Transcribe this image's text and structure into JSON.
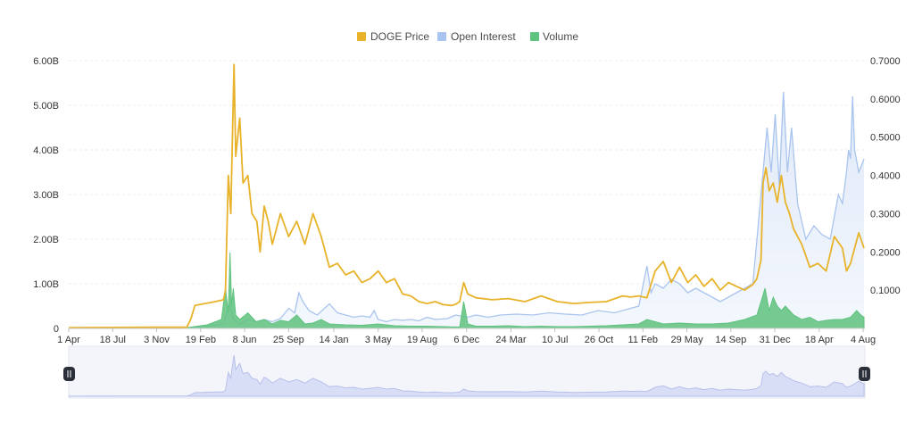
{
  "chart_data": {
    "type": "line",
    "legend": {
      "placement": "top-center",
      "items": [
        {
          "key": "price",
          "label": "DOGE Price",
          "color": "#E8B32A"
        },
        {
          "key": "oi",
          "label": "Open Interest",
          "color": "#A9C4EE"
        },
        {
          "key": "volume",
          "label": "Volume",
          "color": "#5FC27E"
        }
      ]
    },
    "left_axis": {
      "ylim": [
        0,
        6.0
      ],
      "ticks": [
        0,
        1,
        2,
        3,
        4,
        5,
        6
      ],
      "tick_labels": [
        "0",
        "1.00B",
        "2.00B",
        "3.00B",
        "4.00B",
        "5.00B",
        "6.00B"
      ]
    },
    "right_axis": {
      "ylim": [
        0,
        0.7
      ],
      "ticks": [
        0.1,
        0.2,
        0.3,
        0.4,
        0.5,
        0.6,
        0.7
      ],
      "tick_labels": [
        "0.1000",
        "0.2000",
        "0.3000",
        "0.4000",
        "0.5000",
        "0.6000",
        "0.7000"
      ]
    },
    "x_axis": {
      "range": [
        0,
        1953
      ],
      "tick_labels": [
        "1 Apr",
        "18 Jul",
        "3 Nov",
        "19 Feb",
        "8 Jun",
        "25 Sep",
        "14 Jan",
        "3 May",
        "19 Aug",
        "6 Dec",
        "24 Mar",
        "10 Jul",
        "26 Oct",
        "11 Feb",
        "29 May",
        "14 Sep",
        "31 Dec",
        "18 Apr",
        "4 Aug"
      ],
      "tick_positions": [
        0,
        108,
        216,
        324,
        432,
        540,
        651,
        760,
        868,
        977,
        1086,
        1194,
        1302,
        1410,
        1518,
        1626,
        1734,
        1843,
        1951
      ]
    },
    "grid": true,
    "series": [
      {
        "name": "DOGE Price",
        "key": "price",
        "axis": "right",
        "x": [
          0,
          100,
          200,
          290,
          300,
          310,
          360,
          380,
          385,
          392,
          398,
          402,
          406,
          410,
          420,
          428,
          440,
          450,
          462,
          470,
          480,
          490,
          500,
          520,
          540,
          560,
          580,
          600,
          620,
          640,
          660,
          680,
          700,
          720,
          740,
          760,
          780,
          800,
          820,
          840,
          860,
          880,
          900,
          920,
          940,
          950,
          960,
          970,
          980,
          1000,
          1040,
          1080,
          1120,
          1160,
          1200,
          1240,
          1280,
          1320,
          1360,
          1380,
          1400,
          1420,
          1440,
          1460,
          1480,
          1500,
          1520,
          1540,
          1560,
          1580,
          1600,
          1620,
          1640,
          1660,
          1680,
          1690,
          1700,
          1705,
          1712,
          1720,
          1730,
          1740,
          1750,
          1760,
          1770,
          1780,
          1790,
          1800,
          1810,
          1820,
          1840,
          1860,
          1880,
          1900,
          1910,
          1920,
          1930,
          1940,
          1953
        ],
        "values": [
          0.002,
          0.0025,
          0.003,
          0.003,
          0.025,
          0.06,
          0.07,
          0.075,
          0.1,
          0.4,
          0.3,
          0.5,
          0.69,
          0.45,
          0.55,
          0.38,
          0.4,
          0.3,
          0.28,
          0.2,
          0.32,
          0.28,
          0.22,
          0.3,
          0.24,
          0.28,
          0.22,
          0.3,
          0.24,
          0.16,
          0.17,
          0.14,
          0.15,
          0.12,
          0.13,
          0.15,
          0.12,
          0.13,
          0.09,
          0.085,
          0.07,
          0.065,
          0.07,
          0.062,
          0.06,
          0.063,
          0.07,
          0.12,
          0.09,
          0.08,
          0.075,
          0.078,
          0.07,
          0.085,
          0.07,
          0.065,
          0.068,
          0.07,
          0.085,
          0.082,
          0.085,
          0.08,
          0.15,
          0.175,
          0.12,
          0.16,
          0.12,
          0.14,
          0.11,
          0.13,
          0.1,
          0.12,
          0.11,
          0.1,
          0.115,
          0.13,
          0.18,
          0.38,
          0.42,
          0.36,
          0.38,
          0.33,
          0.4,
          0.33,
          0.3,
          0.26,
          0.24,
          0.22,
          0.19,
          0.16,
          0.17,
          0.15,
          0.24,
          0.21,
          0.15,
          0.17,
          0.21,
          0.25,
          0.21
        ]
      },
      {
        "name": "Open Interest",
        "key": "oi",
        "axis": "left",
        "x": [
          0,
          280,
          300,
          340,
          380,
          395,
          405,
          420,
          440,
          460,
          480,
          500,
          520,
          540,
          555,
          565,
          575,
          590,
          610,
          640,
          660,
          680,
          700,
          720,
          740,
          750,
          760,
          780,
          800,
          820,
          840,
          860,
          880,
          900,
          930,
          950,
          980,
          1000,
          1030,
          1060,
          1100,
          1140,
          1180,
          1220,
          1260,
          1300,
          1340,
          1380,
          1400,
          1420,
          1430,
          1440,
          1460,
          1480,
          1500,
          1520,
          1540,
          1560,
          1580,
          1600,
          1620,
          1640,
          1660,
          1680,
          1700,
          1715,
          1725,
          1735,
          1745,
          1755,
          1765,
          1775,
          1790,
          1810,
          1830,
          1850,
          1870,
          1880,
          1890,
          1900,
          1910,
          1915,
          1920,
          1925,
          1930,
          1940,
          1953
        ],
        "values": [
          0,
          0,
          0.02,
          0.05,
          0.1,
          0.55,
          0.2,
          0.1,
          0.2,
          0.15,
          0.2,
          0.15,
          0.22,
          0.45,
          0.35,
          0.8,
          0.6,
          0.4,
          0.3,
          0.55,
          0.35,
          0.3,
          0.25,
          0.28,
          0.25,
          0.4,
          0.2,
          0.15,
          0.2,
          0.18,
          0.2,
          0.17,
          0.25,
          0.2,
          0.22,
          0.3,
          0.25,
          0.3,
          0.25,
          0.3,
          0.32,
          0.3,
          0.35,
          0.32,
          0.3,
          0.4,
          0.35,
          0.45,
          0.5,
          1.4,
          0.8,
          1.0,
          0.9,
          1.1,
          1.0,
          0.8,
          0.9,
          0.8,
          0.7,
          0.6,
          0.7,
          0.8,
          0.9,
          1.0,
          3.0,
          4.5,
          3.5,
          4.8,
          3.2,
          5.3,
          3.5,
          4.5,
          2.8,
          2.0,
          2.3,
          2.1,
          2.0,
          2.5,
          3.0,
          2.8,
          3.5,
          4.0,
          3.8,
          5.2,
          4.0,
          3.5,
          3.8
        ]
      },
      {
        "name": "Volume",
        "key": "volume",
        "axis": "left",
        "x": [
          0,
          280,
          300,
          340,
          375,
          385,
          392,
          396,
          400,
          404,
          410,
          420,
          440,
          460,
          480,
          500,
          520,
          540,
          560,
          580,
          600,
          620,
          640,
          680,
          720,
          760,
          800,
          840,
          880,
          920,
          960,
          970,
          980,
          1000,
          1040,
          1080,
          1120,
          1160,
          1200,
          1240,
          1280,
          1320,
          1360,
          1400,
          1420,
          1440,
          1460,
          1500,
          1540,
          1580,
          1620,
          1660,
          1690,
          1700,
          1710,
          1720,
          1730,
          1740,
          1750,
          1760,
          1780,
          1800,
          1820,
          1840,
          1860,
          1880,
          1900,
          1920,
          1935,
          1945,
          1953
        ],
        "values": [
          0,
          0,
          0.03,
          0.08,
          0.2,
          0.9,
          0.35,
          1.7,
          0.5,
          0.9,
          0.3,
          0.2,
          0.35,
          0.15,
          0.2,
          0.1,
          0.18,
          0.15,
          0.3,
          0.1,
          0.12,
          0.2,
          0.1,
          0.08,
          0.07,
          0.1,
          0.06,
          0.05,
          0.05,
          0.04,
          0.03,
          0.6,
          0.1,
          0.05,
          0.05,
          0.06,
          0.04,
          0.05,
          0.04,
          0.04,
          0.05,
          0.06,
          0.08,
          0.1,
          0.2,
          0.15,
          0.1,
          0.12,
          0.1,
          0.1,
          0.12,
          0.2,
          0.3,
          0.6,
          0.9,
          0.4,
          0.7,
          0.5,
          0.4,
          0.5,
          0.3,
          0.2,
          0.25,
          0.15,
          0.18,
          0.2,
          0.2,
          0.25,
          0.4,
          0.3,
          0.25
        ]
      }
    ],
    "navigator": {
      "range": [
        0,
        1
      ],
      "handles": [
        "left",
        "right"
      ]
    }
  }
}
